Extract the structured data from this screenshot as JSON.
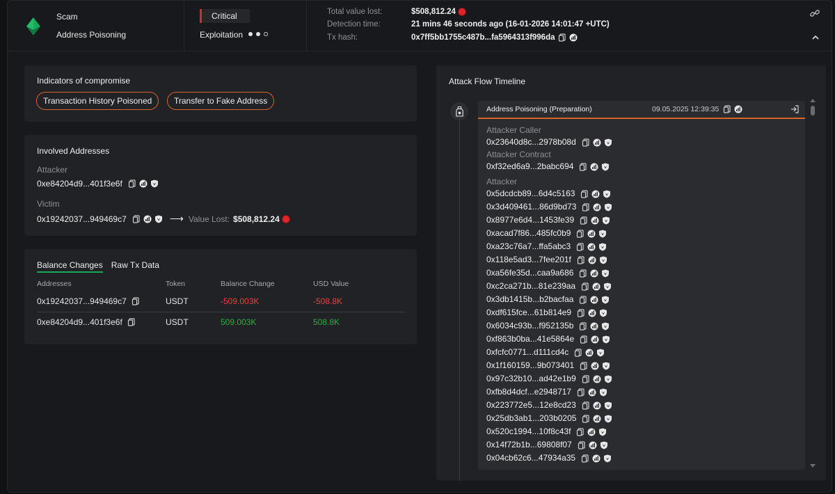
{
  "header": {
    "type": "Scam",
    "subtype": "Address Poisoning",
    "severity": "Critical",
    "stage": "Exploitation",
    "total_value_lost_label": "Total value lost:",
    "total_value_lost": "$508,812.24",
    "detection_time_label": "Detection time:",
    "detection_time": "21 mins 46 seconds ago (16-01-2026 14:01:47 +UTC)",
    "tx_hash_label": "Tx hash:",
    "tx_hash": "0x7ff5bb1755c487b...fa5964313f996da"
  },
  "indicators": {
    "title": "Indicators of compromise",
    "items": [
      "Transaction History Poisoned",
      "Transfer to Fake Address"
    ]
  },
  "involved": {
    "title": "Involved Addresses",
    "attacker_label": "Attacker",
    "attacker": "0xe84204d9...401f3e6f",
    "victim_label": "Victim",
    "victim": "0x19242037...949469c7",
    "arrow": "⟶",
    "value_lost_label": "Value Lost:",
    "value_lost": "$508,812.24"
  },
  "balance": {
    "tabs": [
      "Balance Changes",
      "Raw Tx Data"
    ],
    "columns": [
      "Addresses",
      "Token",
      "Balance Change",
      "USD Value"
    ],
    "rows": [
      {
        "address": "0x19242037...949469c7",
        "token": "USDT",
        "change": "-509.003K",
        "usd": "-508.8K"
      },
      {
        "address": "0xe84204d9...401f3e6f",
        "token": "USDT",
        "change": "509.003K",
        "usd": "508.8K"
      }
    ]
  },
  "timeline": {
    "title": "Attack Flow Timeline",
    "event_title": "Address Poisoning  (Preparation)",
    "event_date": "09.05.2025 12:39:35",
    "caller_label": "Attacker Caller",
    "caller": "0x23640d8c...2978b08d",
    "contract_label": "Attacker Contract",
    "contract": "0xf32ed6a9...2babc694",
    "attacker_label": "Attacker",
    "attackers": [
      "0x5dcdcb89...6d4c5163",
      "0x3d409461...86d9bd73",
      "0x8977e6d4...1453fe39",
      "0xacad7f86...485fc0b9",
      "0xa23c76a7...ffa5abc3",
      "0x118e5ad3...7fee201f",
      "0xa56fe35d...caa9a686",
      "0xc2ca271b...81e239aa",
      "0x3db1415b...b2bacfaa",
      "0xdf615fce...61b814e9",
      "0x6034c93b...f952135b",
      "0xf863b0ba...41e5864e",
      "0xfcfc0771...d111cd4c",
      "0x1f160159...9b073401",
      "0x97c32b10...ad42e1b9",
      "0xfb8d4dcf...e2948717",
      "0x223772e5...12e8cd23",
      "0x25db3ab1...203b0205",
      "0x520c1994...10f8c43f",
      "0x14f72b1b...69808f07",
      "0x04cb62c6...47934a35"
    ]
  },
  "colors": {
    "accent_orange": "#d9622b",
    "critical_red": "#e0252b",
    "positive_green": "#27b03b",
    "negative_red": "#e4443a",
    "tab_green": "#17a85a"
  }
}
